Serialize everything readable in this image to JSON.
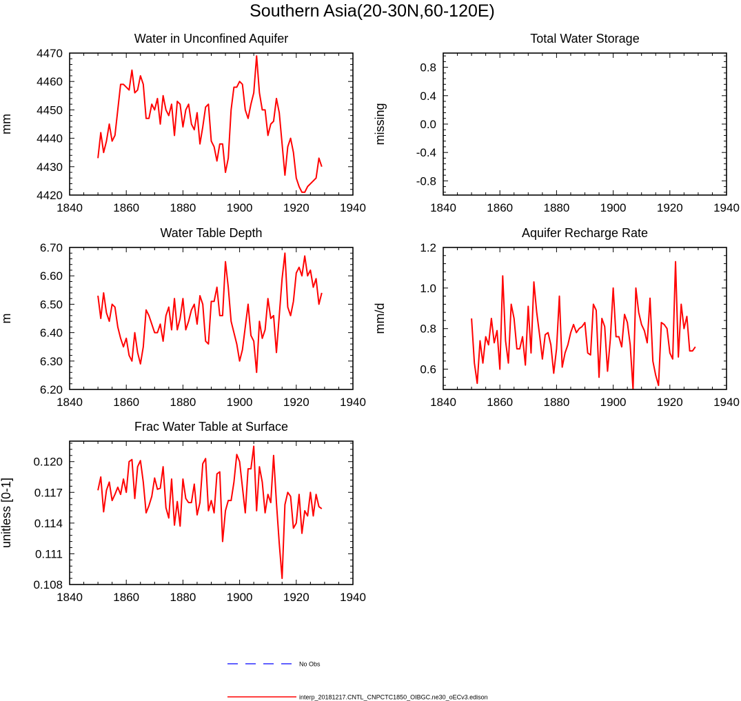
{
  "figure": {
    "title": "Southern Asia(20-30N,60-120E)"
  },
  "colors": {
    "model": "#ff0000",
    "obs": "#0000ff",
    "axis": "#000000"
  },
  "legend": [
    {
      "label": "No Obs",
      "style": "dashed",
      "color": "#0000ff"
    },
    {
      "label": "interp_20181217.CNTL_CNPCTC1850_OIBGC.ne30_oECv3.edison",
      "style": "solid",
      "color": "#ff0000"
    }
  ],
  "chart_data": [
    {
      "type": "line",
      "title": "Water in Unconfined Aquifer",
      "ylabel": "mm",
      "xlim": [
        1840,
        1940
      ],
      "ylim": [
        4420,
        4470
      ],
      "xticks": [
        1840,
        1860,
        1880,
        1900,
        1920,
        1940
      ],
      "xtick_labels": [
        "1840",
        "1860",
        "1880",
        "1900",
        "1920",
        "1940"
      ],
      "yticks": [
        4420,
        4430,
        4440,
        4450,
        4460,
        4470
      ],
      "ytick_labels": [
        "4420",
        "4430",
        "4440",
        "4450",
        "4460",
        "4470"
      ],
      "x_start": 1850,
      "series": [
        {
          "name": "interp_20181217.CNTL_CNPCTC1850_OIBGC.ne30_oECv3.edison",
          "values": [
            4433,
            4442,
            4435,
            4439,
            4445,
            4439,
            4441,
            4450,
            4459,
            4459,
            4458,
            4457,
            4464,
            4456,
            4457,
            4462,
            4459,
            4447,
            4447,
            4452,
            4450,
            4454,
            4445,
            4455,
            4450,
            4448,
            4452,
            4441,
            4453,
            4452,
            4444,
            4450,
            4452,
            4445,
            4443,
            4449,
            4438,
            4444,
            4451,
            4452,
            4439,
            4437,
            4432,
            4438,
            4438,
            4428,
            4433,
            4450,
            4458,
            4458,
            4460,
            4459,
            4450,
            4447,
            4452,
            4456,
            4469,
            4456,
            4450,
            4450,
            4441,
            4445,
            4446,
            4454,
            4449,
            4438,
            4427,
            4437,
            4440,
            4435,
            4426,
            4423,
            4421,
            4421,
            4423,
            4424,
            4425,
            4426,
            4433,
            4430
          ]
        }
      ]
    },
    {
      "type": "line",
      "title": "Total Water Storage",
      "ylabel": "missing",
      "xlim": [
        1840,
        1940
      ],
      "ylim": [
        -1.0,
        1.0
      ],
      "xticks": [
        1840,
        1860,
        1880,
        1900,
        1920,
        1940
      ],
      "xtick_labels": [
        "1840",
        "1860",
        "1880",
        "1900",
        "1920",
        "1940"
      ],
      "yticks": [
        -0.8,
        -0.4,
        0.0,
        0.4,
        0.8
      ],
      "ytick_labels": [
        "-0.8",
        "-0.4",
        "0.0",
        "0.4",
        "0.8"
      ],
      "x_start": 1850,
      "series": []
    },
    {
      "type": "line",
      "title": "Water Table Depth",
      "ylabel": "m",
      "xlim": [
        1840,
        1940
      ],
      "ylim": [
        6.2,
        6.7
      ],
      "xticks": [
        1840,
        1860,
        1880,
        1900,
        1920,
        1940
      ],
      "xtick_labels": [
        "1840",
        "1860",
        "1880",
        "1900",
        "1920",
        "1940"
      ],
      "yticks": [
        6.2,
        6.3,
        6.4,
        6.5,
        6.6,
        6.7
      ],
      "ytick_labels": [
        "6.20",
        "6.30",
        "6.40",
        "6.50",
        "6.60",
        "6.70"
      ],
      "x_start": 1850,
      "series": [
        {
          "name": "interp_20181217.CNTL_CNPCTC1850_OIBGC.ne30_oECv3.edison",
          "values": [
            6.53,
            6.45,
            6.54,
            6.47,
            6.44,
            6.5,
            6.49,
            6.42,
            6.38,
            6.35,
            6.38,
            6.32,
            6.3,
            6.4,
            6.33,
            6.29,
            6.35,
            6.48,
            6.46,
            6.43,
            6.4,
            6.4,
            6.43,
            6.37,
            6.46,
            6.49,
            6.41,
            6.52,
            6.41,
            6.45,
            6.52,
            6.41,
            6.44,
            6.48,
            6.5,
            6.43,
            6.53,
            6.5,
            6.37,
            6.36,
            6.51,
            6.51,
            6.56,
            6.46,
            6.46,
            6.65,
            6.56,
            6.44,
            6.4,
            6.36,
            6.3,
            6.34,
            6.42,
            6.5,
            6.39,
            6.37,
            6.26,
            6.44,
            6.38,
            6.41,
            6.52,
            6.45,
            6.46,
            6.33,
            6.46,
            6.59,
            6.68,
            6.49,
            6.46,
            6.51,
            6.61,
            6.63,
            6.6,
            6.67,
            6.6,
            6.62,
            6.56,
            6.59,
            6.5,
            6.54
          ]
        }
      ]
    },
    {
      "type": "line",
      "title": "Aquifer Recharge Rate",
      "ylabel": "mm/d",
      "xlim": [
        1840,
        1940
      ],
      "ylim": [
        0.5,
        1.2
      ],
      "xticks": [
        1840,
        1860,
        1880,
        1900,
        1920,
        1940
      ],
      "xtick_labels": [
        "1840",
        "1860",
        "1880",
        "1900",
        "1920",
        "1940"
      ],
      "yticks": [
        0.6,
        0.8,
        1.0,
        1.2
      ],
      "ytick_labels": [
        "0.6",
        "0.8",
        "1.0",
        "1.2"
      ],
      "x_start": 1850,
      "series": [
        {
          "name": "interp_20181217.CNTL_CNPCTC1850_OIBGC.ne30_oECv3.edison",
          "values": [
            0.85,
            0.63,
            0.53,
            0.74,
            0.63,
            0.76,
            0.72,
            0.85,
            0.73,
            0.79,
            0.6,
            1.06,
            0.74,
            0.63,
            0.92,
            0.85,
            0.7,
            0.7,
            0.76,
            0.62,
            0.91,
            0.68,
            1.03,
            0.88,
            0.77,
            0.65,
            0.77,
            0.78,
            0.72,
            0.58,
            0.7,
            0.96,
            0.61,
            0.68,
            0.72,
            0.78,
            0.82,
            0.78,
            0.8,
            0.81,
            0.83,
            0.68,
            0.67,
            0.92,
            0.89,
            0.56,
            0.85,
            0.81,
            0.59,
            0.75,
            1.0,
            0.76,
            0.76,
            0.71,
            0.87,
            0.83,
            0.72,
            0.5,
            1.0,
            0.88,
            0.82,
            0.79,
            0.73,
            0.95,
            0.64,
            0.57,
            0.52,
            0.83,
            0.82,
            0.8,
            0.68,
            0.65,
            1.13,
            0.66,
            0.92,
            0.8,
            0.86,
            0.69,
            0.69,
            0.71
          ]
        }
      ]
    },
    {
      "type": "line",
      "title": "Frac Water Table at Surface",
      "ylabel": "unitless [0-1]",
      "xlim": [
        1840,
        1940
      ],
      "ylim": [
        0.108,
        0.122
      ],
      "xticks": [
        1840,
        1860,
        1880,
        1900,
        1920,
        1940
      ],
      "xtick_labels": [
        "1840",
        "1860",
        "1880",
        "1900",
        "1920",
        "1940"
      ],
      "yticks": [
        0.108,
        0.111,
        0.114,
        0.117,
        0.12
      ],
      "ytick_labels": [
        "0.108",
        "0.111",
        "0.114",
        "0.117",
        "0.120"
      ],
      "x_start": 1850,
      "series": [
        {
          "name": "interp_20181217.CNTL_CNPCTC1850_OIBGC.ne30_oECv3.edison",
          "values": [
            0.1172,
            0.1185,
            0.1151,
            0.1172,
            0.118,
            0.1162,
            0.1168,
            0.1175,
            0.1168,
            0.1183,
            0.117,
            0.12,
            0.1202,
            0.1164,
            0.1195,
            0.1201,
            0.118,
            0.115,
            0.1157,
            0.1166,
            0.1184,
            0.1173,
            0.1174,
            0.1195,
            0.1155,
            0.1145,
            0.1183,
            0.1138,
            0.1161,
            0.1137,
            0.1183,
            0.1164,
            0.116,
            0.116,
            0.1178,
            0.1148,
            0.116,
            0.1198,
            0.1203,
            0.1152,
            0.1162,
            0.115,
            0.1188,
            0.119,
            0.1122,
            0.1152,
            0.1162,
            0.1162,
            0.118,
            0.1207,
            0.12,
            0.1175,
            0.115,
            0.1193,
            0.1193,
            0.1215,
            0.1152,
            0.1195,
            0.118,
            0.115,
            0.1168,
            0.116,
            0.1206,
            0.116,
            0.112,
            0.1086,
            0.1158,
            0.117,
            0.1166,
            0.1135,
            0.114,
            0.1168,
            0.113,
            0.1152,
            0.1147,
            0.117,
            0.1147,
            0.1168,
            0.1156,
            0.1154
          ]
        }
      ]
    }
  ]
}
